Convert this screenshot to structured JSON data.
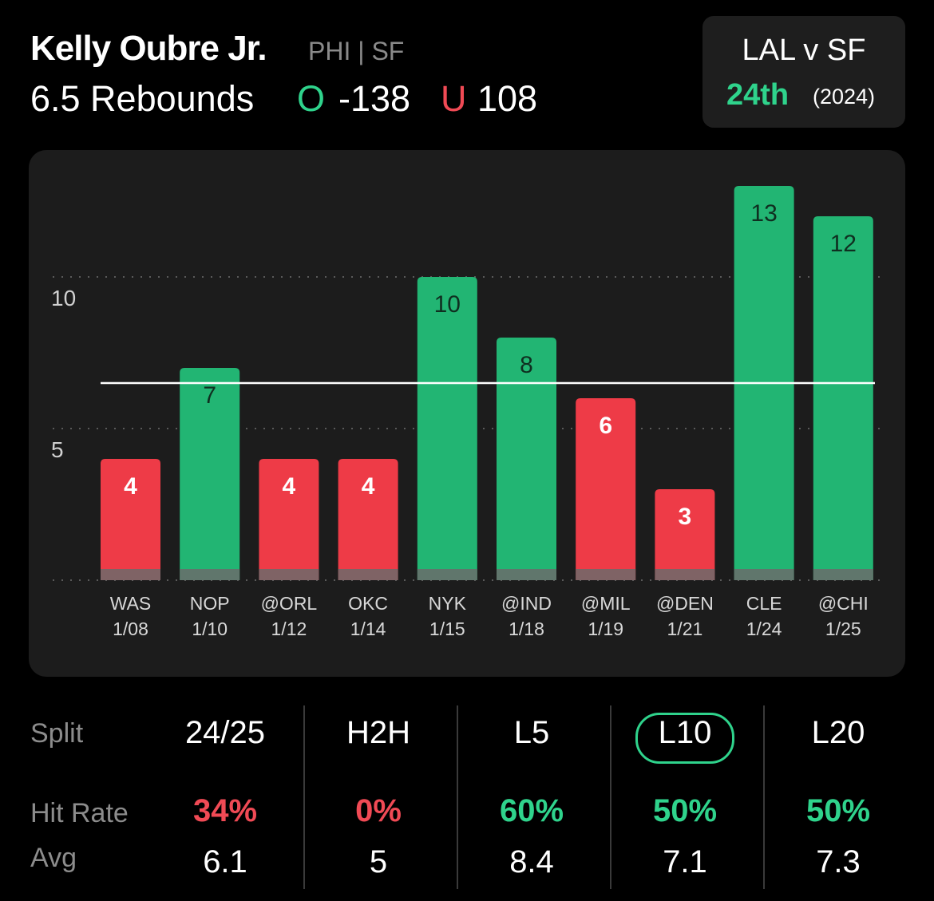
{
  "header": {
    "player_name": "Kelly Oubre Jr.",
    "team": "PHI | SF",
    "prop": "6.5 Rebounds",
    "over_mark": "O",
    "over_odds": "-138",
    "under_mark": "U",
    "under_odds": "108"
  },
  "matchup": {
    "title": "LAL v SF",
    "rank": "24th",
    "year": "(2024)"
  },
  "colors": {
    "over": "#22b573",
    "under": "#ee3b47",
    "accent": "#2fd38c",
    "panel": "#1c1c1c"
  },
  "chart_data": {
    "type": "bar",
    "categories": [
      "WAS 1/08",
      "NOP 1/10",
      "@ORL 1/12",
      "OKC 1/14",
      "NYK 1/15",
      "@IND 1/18",
      "@MIL 1/19",
      "@DEN 1/21",
      "CLE 1/24",
      "@CHI 1/25"
    ],
    "opponents": [
      "WAS",
      "NOP",
      "@ORL",
      "OKC",
      "NYK",
      "@IND",
      "@MIL",
      "@DEN",
      "CLE",
      "@CHI"
    ],
    "dates": [
      "1/08",
      "1/10",
      "1/12",
      "1/14",
      "1/15",
      "1/18",
      "1/19",
      "1/21",
      "1/24",
      "1/25"
    ],
    "values": [
      4,
      7,
      4,
      4,
      10,
      8,
      6,
      3,
      13,
      12
    ],
    "line": 6.5,
    "yticks": [
      5,
      10
    ],
    "ylim": [
      0,
      14
    ],
    "grid": "dotted"
  },
  "splits": {
    "row_labels": {
      "split": "Split",
      "hit_rate": "Hit Rate",
      "avg": "Avg"
    },
    "columns": [
      {
        "label": "24/25",
        "hit_rate": "34%",
        "hit_color": "#f04a55",
        "avg": "6.1",
        "selected": false
      },
      {
        "label": "H2H",
        "hit_rate": "0%",
        "hit_color": "#f04a55",
        "avg": "5",
        "selected": false
      },
      {
        "label": "L5",
        "hit_rate": "60%",
        "hit_color": "#2fd38c",
        "avg": "8.4",
        "selected": false
      },
      {
        "label": "L10",
        "hit_rate": "50%",
        "hit_color": "#2fd38c",
        "avg": "7.1",
        "selected": true
      },
      {
        "label": "L20",
        "hit_rate": "50%",
        "hit_color": "#2fd38c",
        "avg": "7.3",
        "selected": false
      }
    ]
  }
}
